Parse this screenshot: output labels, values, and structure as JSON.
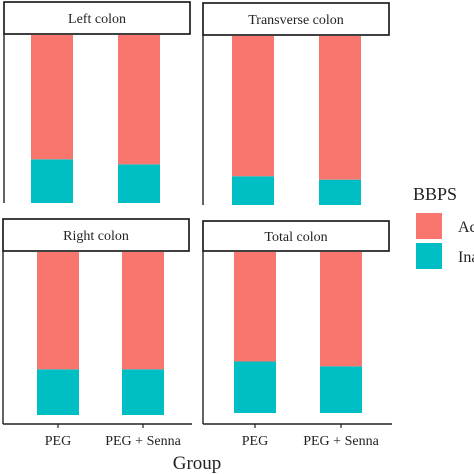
{
  "chart_data": {
    "type": "bar",
    "stacked": true,
    "normalized": true,
    "x_axis_title": "Group",
    "categories": [
      "PEG",
      "PEG + Senna"
    ],
    "legend": {
      "title": "BBPS",
      "placement": "right",
      "entries": [
        {
          "name": "Ac",
          "color": "#F8766D"
        },
        {
          "name": "Ina",
          "color": "#00BFC4"
        }
      ]
    },
    "panels": [
      {
        "title": "Left colon",
        "series": [
          {
            "name": "Ac",
            "values": [
              0.74,
              0.77
            ]
          },
          {
            "name": "Ina",
            "values": [
              0.26,
              0.23
            ]
          }
        ]
      },
      {
        "title": "Transverse colon",
        "series": [
          {
            "name": "Ac",
            "values": [
              0.83,
              0.85
            ]
          },
          {
            "name": "Ina",
            "values": [
              0.17,
              0.15
            ]
          }
        ]
      },
      {
        "title": "Right colon",
        "series": [
          {
            "name": "Ac",
            "values": [
              0.72,
              0.72
            ]
          },
          {
            "name": "Ina",
            "values": [
              0.28,
              0.28
            ]
          }
        ]
      },
      {
        "title": "Total colon",
        "series": [
          {
            "name": "Ac",
            "values": [
              0.68,
              0.71
            ]
          },
          {
            "name": "Ina",
            "values": [
              0.32,
              0.29
            ]
          }
        ]
      }
    ]
  }
}
